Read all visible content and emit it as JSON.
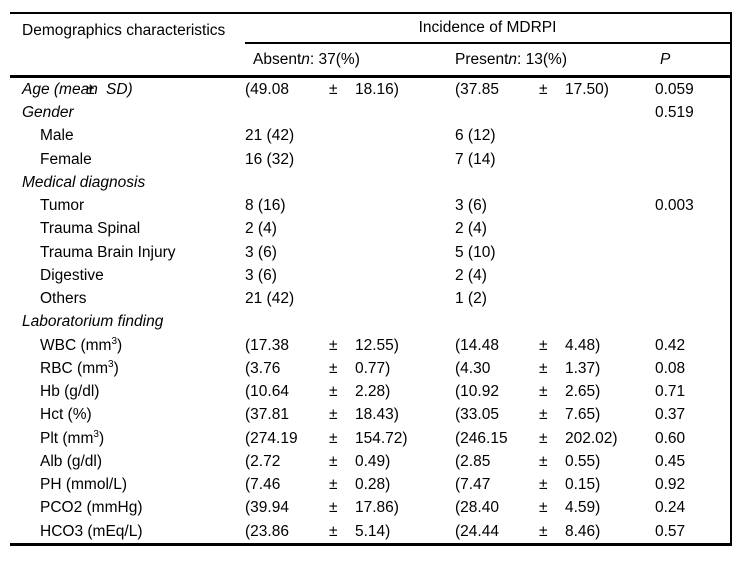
{
  "table": {
    "header": {
      "demographics": "Demographics characteristics",
      "incidence": "Incidence of MDRPI",
      "absent": {
        "pre": "Absent",
        "n": "n",
        "post": ": 37(%)"
      },
      "present": {
        "pre": "Present",
        "n": "n",
        "post": ": 13(%)"
      },
      "p": "P"
    },
    "rows": [
      {
        "style": "group",
        "label": {
          "a": "Age (mean",
          "pm": "±",
          "b": "SD)"
        },
        "absent": {
          "a": "(49.08",
          "pm": "±",
          "b": "18.16)"
        },
        "present": {
          "a": "(37.85",
          "pm": "±",
          "b": "17.50)"
        },
        "p": "0.059"
      },
      {
        "style": "group",
        "label": "Gender",
        "absent": "",
        "present": "",
        "p": "0.519"
      },
      {
        "style": "item",
        "label": "Male",
        "absent": "21 (42)",
        "present": "6 (12)",
        "p": ""
      },
      {
        "style": "item",
        "label": "Female",
        "absent": "16 (32)",
        "present": "7 (14)",
        "p": ""
      },
      {
        "style": "group",
        "label": "Medical diagnosis",
        "absent": "",
        "present": "",
        "p": ""
      },
      {
        "style": "item",
        "label": "Tumor",
        "absent": "8 (16)",
        "present": "3 (6)",
        "p": "0.003"
      },
      {
        "style": "item",
        "label": "Trauma Spinal",
        "absent": "2 (4)",
        "present": "2 (4)",
        "p": ""
      },
      {
        "style": "item",
        "label": "Trauma Brain Injury",
        "absent": "3 (6)",
        "present": "5 (10)",
        "p": ""
      },
      {
        "style": "item",
        "label": "Digestive",
        "absent": "3 (6)",
        "present": "2 (4)",
        "p": ""
      },
      {
        "style": "item",
        "label": "Others",
        "absent": "21 (42)",
        "present": "1 (2)",
        "p": ""
      },
      {
        "style": "group",
        "label": "Laboratorium finding",
        "absent": "",
        "present": "",
        "p": ""
      },
      {
        "style": "item",
        "label": {
          "pre": "WBC (mm",
          "sup": "3",
          "post": ")"
        },
        "absent": {
          "a": "(17.38",
          "pm": "±",
          "b": "12.55)"
        },
        "present": {
          "a": "(14.48",
          "pm": "±",
          "b": "4.48)"
        },
        "p": "0.42"
      },
      {
        "style": "item",
        "label": {
          "pre": "RBC (mm",
          "sup": "3",
          "post": ")"
        },
        "absent": {
          "a": "(3.76",
          "pm": "±",
          "b": "0.77)"
        },
        "present": {
          "a": "(4.30",
          "pm": "±",
          "b": "1.37)"
        },
        "p": "0.08"
      },
      {
        "style": "item",
        "label": "Hb (g/dl)",
        "absent": {
          "a": "(10.64",
          "pm": "±",
          "b": "2.28)"
        },
        "present": {
          "a": "(10.92",
          "pm": "±",
          "b": "2.65)"
        },
        "p": "0.71"
      },
      {
        "style": "item",
        "label": "Hct (%)",
        "absent": {
          "a": "(37.81",
          "pm": "±",
          "b": "18.43)"
        },
        "present": {
          "a": "(33.05",
          "pm": "±",
          "b": "7.65)"
        },
        "p": "0.37"
      },
      {
        "style": "item",
        "label": {
          "pre": "Plt (mm",
          "sup": "3",
          "post": ")"
        },
        "absent": {
          "a": "(274.19",
          "pm": "±",
          "b": "154.72)"
        },
        "present": {
          "a": "(246.15",
          "pm": "±",
          "b": "202.02)"
        },
        "p": "0.60"
      },
      {
        "style": "item",
        "label": "Alb (g/dl)",
        "absent": {
          "a": "(2.72",
          "pm": "±",
          "b": "0.49)"
        },
        "present": {
          "a": "(2.85",
          "pm": "±",
          "b": "0.55)"
        },
        "p": "0.45"
      },
      {
        "style": "item",
        "label": "PH (mmol/L)",
        "absent": {
          "a": "(7.46",
          "pm": "±",
          "b": "0.28)"
        },
        "present": {
          "a": "(7.47",
          "pm": "±",
          "b": "0.15)"
        },
        "p": "0.92"
      },
      {
        "style": "item",
        "label": "PCO2 (mmHg)",
        "absent": {
          "a": "(39.94",
          "pm": "±",
          "b": "17.86)"
        },
        "present": {
          "a": "(28.40",
          "pm": "±",
          "b": "4.59)"
        },
        "p": "0.24"
      },
      {
        "style": "item",
        "label": "HCO3 (mEq/L)",
        "absent": {
          "a": "(23.86",
          "pm": "±",
          "b": "5.14)"
        },
        "present": {
          "a": "(24.44",
          "pm": "±",
          "b": "8.46)"
        },
        "p": "0.57"
      }
    ]
  }
}
